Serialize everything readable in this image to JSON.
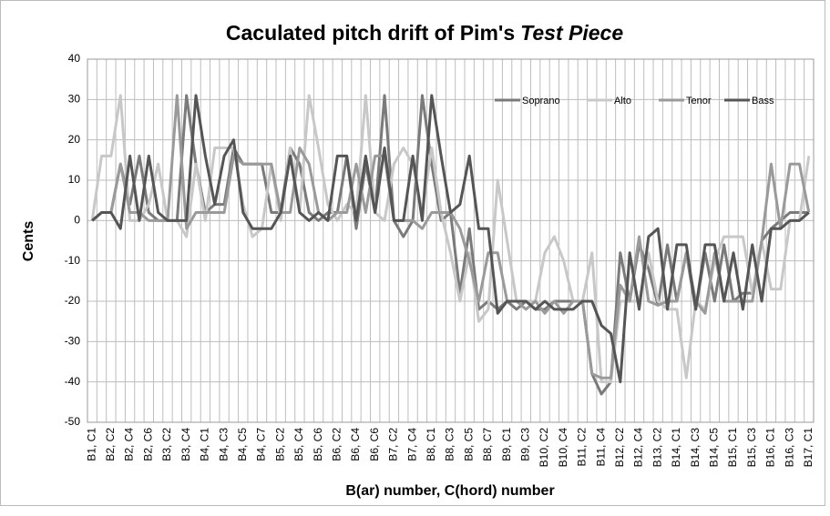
{
  "chart_data": {
    "type": "line",
    "title_parts": [
      "Caculated pitch drift of Pim's",
      "Test Piece"
    ],
    "x_label": "B(ar) number, C(hord) number",
    "y_label": "Cents",
    "categories": [
      "B1, C1",
      null,
      "B2, C2",
      null,
      "B2, C4",
      null,
      "B2, C6",
      null,
      "B3, C2",
      null,
      "B3, C4",
      null,
      "B4, C1",
      null,
      "B4, C3",
      null,
      "B4, C5",
      null,
      "B4, C7",
      null,
      "B5, C2",
      null,
      "B5, C4",
      null,
      "B5, C6",
      null,
      "B6, C2",
      null,
      "B6, C4",
      null,
      "B6, C6",
      null,
      "B7, C2",
      null,
      "B7, C4",
      null,
      "B8, C1",
      null,
      "B8, C3",
      null,
      "B8, C5",
      null,
      "B8, C7",
      null,
      "B9, C1",
      null,
      "B9, C3",
      null,
      "B10, C2",
      null,
      "B10, C4",
      null,
      "B11, C2",
      null,
      "B11, C4",
      null,
      "B12, C2",
      null,
      "B12, C4",
      null,
      "B13, C2",
      null,
      "B14, C1",
      null,
      "B14, C3",
      null,
      "B14, C5",
      null,
      "B15, C1",
      null,
      "B15, C3",
      null,
      "B16, C1",
      null,
      "B16, C3",
      null,
      "B17, C1"
    ],
    "series": [
      {
        "name": "Soprano",
        "color": "#7a7a7a",
        "values": [
          0,
          2,
          2,
          14,
          4,
          16,
          2,
          0,
          0,
          0,
          31,
          14,
          2,
          4,
          4,
          18,
          14,
          14,
          14,
          2,
          2,
          18,
          14,
          2,
          0,
          2,
          2,
          16,
          -2,
          14,
          2,
          31,
          0,
          -4,
          0,
          31,
          14,
          0,
          2,
          -18,
          -2,
          -22,
          -20,
          -22,
          -20,
          -22,
          -20,
          -22,
          -22,
          -20,
          -20,
          -20,
          -20,
          -38,
          -43,
          -40,
          -8,
          -20,
          -6,
          -12,
          -21,
          -6,
          -20,
          -8,
          -22,
          -8,
          -20,
          -6,
          -20,
          -18,
          -18,
          -5,
          -2,
          0,
          2,
          2,
          2
        ]
      },
      {
        "name": "Alto",
        "color": "#c8c8c8",
        "values": [
          0,
          16,
          16,
          31,
          0,
          0,
          4,
          14,
          0,
          0,
          -4,
          14,
          0,
          18,
          18,
          18,
          4,
          -4,
          -2,
          14,
          0,
          18,
          2,
          31,
          18,
          4,
          0,
          4,
          2,
          31,
          2,
          0,
          14,
          18,
          14,
          2,
          18,
          2,
          -8,
          -20,
          -8,
          -25,
          -22,
          10,
          -5,
          -20,
          -20,
          -20,
          -8,
          -4,
          -10,
          -20,
          -20,
          -8,
          -40,
          -40,
          -20,
          -20,
          -20,
          -8,
          -20,
          -22,
          -22,
          -39,
          -20,
          -22,
          -10,
          -4,
          -4,
          -4,
          -18,
          -5,
          -17,
          -17,
          0,
          0,
          16
        ]
      },
      {
        "name": "Tenor",
        "color": "#9a9a9a",
        "values": [
          0,
          2,
          2,
          14,
          2,
          2,
          0,
          0,
          0,
          31,
          -2,
          2,
          2,
          2,
          2,
          16,
          14,
          14,
          14,
          14,
          2,
          2,
          18,
          14,
          2,
          0,
          2,
          2,
          14,
          2,
          16,
          16,
          0,
          0,
          0,
          -2,
          2,
          2,
          2,
          -2,
          -10,
          -20,
          -8,
          -8,
          -20,
          -20,
          -22,
          -20,
          -23,
          -20,
          -23,
          -20,
          -20,
          -38,
          -39,
          -39,
          -16,
          -20,
          -4,
          -20,
          -21,
          -20,
          -20,
          -8,
          -20,
          -23,
          -8,
          -20,
          -20,
          -20,
          -20,
          -5,
          14,
          -2,
          14,
          14,
          2
        ]
      },
      {
        "name": "Bass",
        "color": "#555555",
        "values": [
          0,
          2,
          2,
          -2,
          16,
          0,
          16,
          2,
          0,
          0,
          0,
          31,
          16,
          4,
          16,
          20,
          2,
          -2,
          -2,
          -2,
          2,
          16,
          2,
          0,
          2,
          0,
          16,
          16,
          0,
          16,
          2,
          18,
          0,
          0,
          16,
          0,
          31,
          16,
          2,
          4,
          16,
          -2,
          -2,
          -23,
          -20,
          -20,
          -20,
          -22,
          -20,
          -22,
          -22,
          -22,
          -20,
          -20,
          -26,
          -28,
          -40,
          -8,
          -22,
          -4,
          -2,
          -22,
          -6,
          -6,
          -22,
          -6,
          -6,
          -20,
          -8,
          -22,
          -6,
          -20,
          -2,
          -2,
          0,
          0,
          2
        ]
      }
    ],
    "ylim": [
      -50,
      40
    ],
    "yticks": [
      -50,
      -40,
      -30,
      -20,
      -10,
      0,
      10,
      20,
      30,
      40
    ],
    "grid": true,
    "legend": "top-right"
  }
}
